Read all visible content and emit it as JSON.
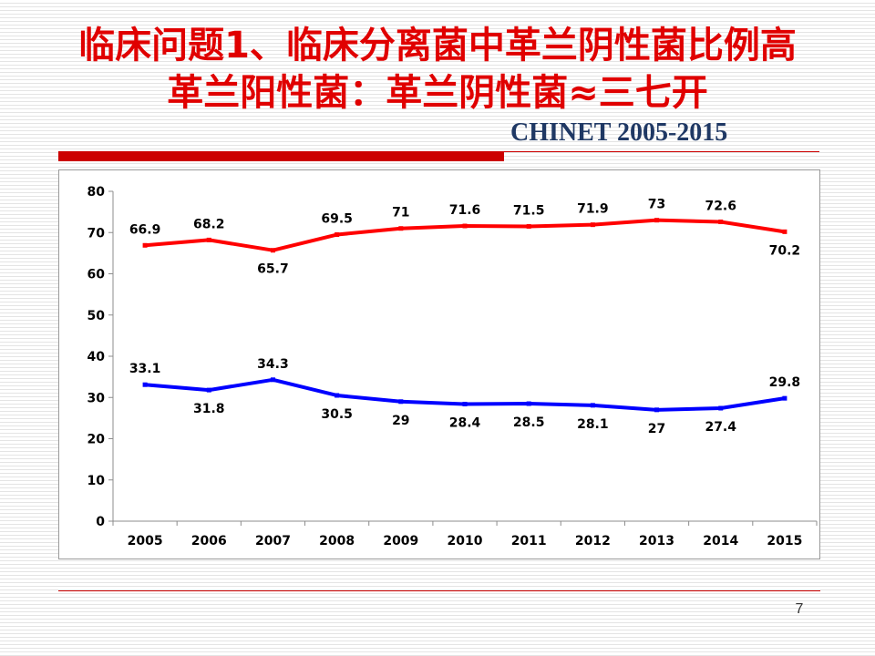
{
  "slide": {
    "title_line1": "临床问题1、临床分离菌中革兰阴性菌比例高",
    "title_line2": "革兰阳性菌：革兰阴性菌≈三七开",
    "subtitle": "CHINET 2005-2015",
    "page_number": "7"
  },
  "colors": {
    "title": "#e00000",
    "subtitle": "#1f3864",
    "accent_bar": "#cc0000",
    "series_gram_negative": "#ff0000",
    "series_gram_positive": "#0000ff"
  },
  "chart_data": {
    "type": "line",
    "title": "",
    "xlabel": "",
    "ylabel": "",
    "categories": [
      "2005",
      "2006",
      "2007",
      "2008",
      "2009",
      "2010",
      "2011",
      "2012",
      "2013",
      "2014",
      "2015"
    ],
    "ylim": [
      0,
      80
    ],
    "yticks": [
      "0",
      "10",
      "20",
      "30",
      "40",
      "50",
      "60",
      "70",
      "80"
    ],
    "grid": false,
    "legend": "none",
    "series": [
      {
        "color": "#ff0000",
        "values": [
          66.9,
          68.2,
          65.7,
          69.5,
          71,
          71.6,
          71.5,
          71.9,
          73,
          72.6,
          70.2
        ],
        "labels": [
          "66.9",
          "68.2",
          "65.7",
          "69.5",
          "71",
          "71.6",
          "71.5",
          "71.9",
          "73",
          "72.6",
          "70.2"
        ],
        "label_side": [
          "above",
          "above",
          "below",
          "above",
          "above",
          "above",
          "above",
          "above",
          "above",
          "above",
          "below"
        ]
      },
      {
        "color": "#0000ff",
        "values": [
          33.1,
          31.8,
          34.3,
          30.5,
          29,
          28.4,
          28.5,
          28.1,
          27,
          27.4,
          29.8
        ],
        "labels": [
          "33.1",
          "31.8",
          "34.3",
          "30.5",
          "29",
          "28.4",
          "28.5",
          "28.1",
          "27",
          "27.4",
          "29.8"
        ],
        "label_side": [
          "above",
          "below",
          "above",
          "below",
          "below",
          "below",
          "below",
          "below",
          "below",
          "below",
          "above"
        ]
      }
    ]
  }
}
